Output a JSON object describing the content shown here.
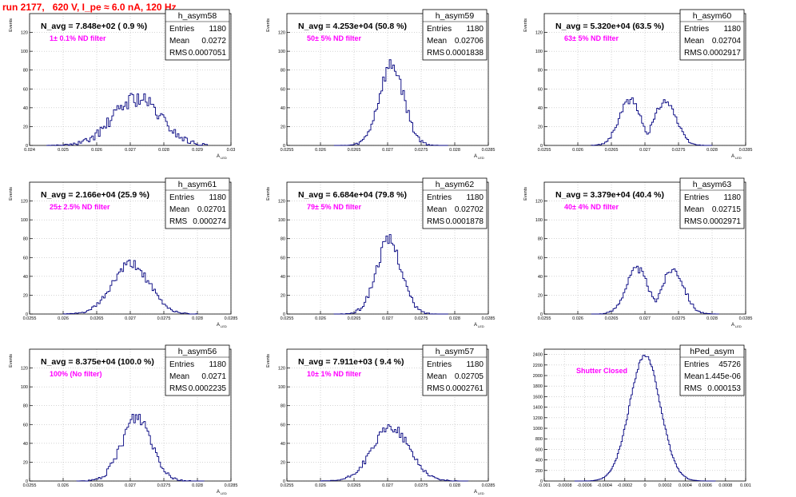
{
  "page": {
    "title": "run 2177,   620 V, I_pe ≈ 6.0 nA, 120 Hz"
  },
  "colors": {
    "hist_line": "#00007f",
    "label": "#ff00ff",
    "title": "#ff0000",
    "grid": "#bbbbbb"
  },
  "chart_data": [
    {
      "type": "histogram",
      "name": "h_asym58",
      "avg_text": "N_avg = 7.848e+02 ( 0.9 %)",
      "label": "1± 0.1% ND filter",
      "stats": {
        "Entries": "1180",
        "Mean": "0.0272",
        "RMS": "0.0007051"
      },
      "ylabel": "Events",
      "xlabel": "A_LED",
      "xlim": [
        0.024,
        0.03
      ],
      "xticks": [
        "0.024",
        "0.025",
        "0.026",
        "0.027",
        "0.028",
        "0.029",
        "0.03"
      ],
      "ylim": [
        0,
        140
      ],
      "yticks": [
        "0",
        "20",
        "40",
        "60",
        "80",
        "100",
        "120"
      ],
      "bins": [
        {
          "lo": 0.0245,
          "hi": 0.0293,
          "n": 96
        }
      ],
      "mean": 0.0272,
      "rms": 0.0007051,
      "peak": 50,
      "noise": 9,
      "seed": 58,
      "flat": 0
    },
    {
      "type": "histogram",
      "name": "h_asym59",
      "avg_text": "N_avg = 4.253e+04 (50.8 %)",
      "label": "50± 5% ND filter",
      "stats": {
        "Entries": "1180",
        "Mean": "0.02706",
        "RMS": "0.0001838"
      },
      "ylabel": "Events",
      "xlabel": "A_LED",
      "xlim": [
        0.0255,
        0.0285
      ],
      "xticks": [
        "0.0255",
        "0.026",
        "0.0265",
        "0.027",
        "0.0275",
        "0.028",
        "0.0285"
      ],
      "ylim": [
        0,
        140
      ],
      "yticks": [
        "0",
        "20",
        "40",
        "60",
        "80",
        "100",
        "120"
      ],
      "bins": [
        {
          "lo": 0.0262,
          "hi": 0.0279,
          "n": 68
        }
      ],
      "mean": 0.02706,
      "rms": 0.0001838,
      "peak": 85,
      "noise": 8,
      "seed": 59,
      "flat": 0
    },
    {
      "type": "histogram",
      "name": "h_asym60",
      "avg_text": "N_avg = 5.320e+04 (63.5 %)",
      "label": "63± 5% ND filter",
      "stats": {
        "Entries": "1180",
        "Mean": "0.02704",
        "RMS": "0.0002917"
      },
      "ylabel": "Events",
      "xlabel": "A_LED",
      "xlim": [
        0.0255,
        0.0285
      ],
      "xticks": [
        "0.0255",
        "0.026",
        "0.0265",
        "0.027",
        "0.0275",
        "0.028",
        "0.0285"
      ],
      "ylim": [
        0,
        140
      ],
      "yticks": [
        "0",
        "20",
        "40",
        "60",
        "80",
        "100",
        "120"
      ],
      "bins": [
        {
          "lo": 0.0262,
          "hi": 0.028,
          "n": 72
        }
      ],
      "mean": 0.02704,
      "rms": 0.0002917,
      "peak": 48,
      "noise": 4,
      "seed": 60,
      "flat": 1
    },
    {
      "type": "histogram",
      "name": "h_asym61",
      "avg_text": "N_avg = 2.166e+04 (25.9 %)",
      "label": "25± 2.5% ND filter",
      "stats": {
        "Entries": "1180",
        "Mean": "0.02701",
        "RMS": "0.000274"
      },
      "ylabel": "Events",
      "xlabel": "A_LED",
      "xlim": [
        0.0255,
        0.0285
      ],
      "xticks": [
        "0.0255",
        "0.026",
        "0.0265",
        "0.027",
        "0.0275",
        "0.028",
        "0.0285"
      ],
      "ylim": [
        0,
        140
      ],
      "yticks": [
        "0",
        "20",
        "40",
        "60",
        "80",
        "100",
        "120"
      ],
      "bins": [
        {
          "lo": 0.026,
          "hi": 0.028,
          "n": 80
        }
      ],
      "mean": 0.02701,
      "rms": 0.000274,
      "peak": 53,
      "noise": 5,
      "seed": 61,
      "flat": 0
    },
    {
      "type": "histogram",
      "name": "h_asym62",
      "avg_text": "N_avg = 6.684e+04 (79.8 %)",
      "label": "79± 5% ND filter",
      "stats": {
        "Entries": "1180",
        "Mean": "0.02702",
        "RMS": "0.0001878"
      },
      "ylabel": "Events",
      "xlabel": "A_LED",
      "xlim": [
        0.0255,
        0.0285
      ],
      "xticks": [
        "0.0255",
        "0.026",
        "0.0265",
        "0.027",
        "0.0275",
        "0.028",
        "0.0285"
      ],
      "ylim": [
        0,
        140
      ],
      "yticks": [
        "0",
        "20",
        "40",
        "60",
        "80",
        "100",
        "120"
      ],
      "bins": [
        {
          "lo": 0.0262,
          "hi": 0.0279,
          "n": 68
        }
      ],
      "mean": 0.02702,
      "rms": 0.0001878,
      "peak": 78,
      "noise": 7,
      "seed": 62,
      "flat": 0
    },
    {
      "type": "histogram",
      "name": "h_asym63",
      "avg_text": "N_avg = 3.379e+04 (40.4 %)",
      "label": "40± 4% ND filter",
      "stats": {
        "Entries": "1180",
        "Mean": "0.02715",
        "RMS": "0.0002971"
      },
      "ylabel": "Events",
      "xlabel": "A_LED",
      "xlim": [
        0.0255,
        0.0285
      ],
      "xticks": [
        "0.0255",
        "0.026",
        "0.0265",
        "0.027",
        "0.0275",
        "0.028",
        "0.0285"
      ],
      "ylim": [
        0,
        140
      ],
      "yticks": [
        "0",
        "20",
        "40",
        "60",
        "80",
        "100",
        "120"
      ],
      "bins": [
        {
          "lo": 0.0262,
          "hi": 0.0281,
          "n": 76
        }
      ],
      "mean": 0.02715,
      "rms": 0.0002971,
      "peak": 48,
      "noise": 4,
      "seed": 63,
      "flat": 1
    },
    {
      "type": "histogram",
      "name": "h_asym56",
      "avg_text": "N_avg = 8.375e+04 (100.0 %)",
      "label": "100% (No filter)",
      "stats": {
        "Entries": "1180",
        "Mean": "0.0271",
        "RMS": "0.0002235"
      },
      "ylabel": "Events",
      "xlabel": "A_LED",
      "xlim": [
        0.0255,
        0.0285
      ],
      "xticks": [
        "0.0255",
        "0.026",
        "0.0265",
        "0.027",
        "0.0275",
        "0.028",
        "0.0285"
      ],
      "ylim": [
        0,
        140
      ],
      "yticks": [
        "0",
        "20",
        "40",
        "60",
        "80",
        "100",
        "120"
      ],
      "bins": [
        {
          "lo": 0.0262,
          "hi": 0.0281,
          "n": 76
        }
      ],
      "mean": 0.0271,
      "rms": 0.0002235,
      "peak": 68,
      "noise": 8,
      "seed": 56,
      "flat": 0
    },
    {
      "type": "histogram",
      "name": "h_asym57",
      "avg_text": "N_avg = 7.911e+03 ( 9.4 %)",
      "label": "10± 1% ND filter",
      "stats": {
        "Entries": "1180",
        "Mean": "0.02705",
        "RMS": "0.0002761"
      },
      "ylabel": "Events",
      "xlabel": "A_LED",
      "xlim": [
        0.0255,
        0.0285
      ],
      "xticks": [
        "0.0255",
        "0.026",
        "0.0265",
        "0.027",
        "0.0275",
        "0.028",
        "0.0285"
      ],
      "ylim": [
        0,
        140
      ],
      "yticks": [
        "0",
        "20",
        "40",
        "60",
        "80",
        "100",
        "120"
      ],
      "bins": [
        {
          "lo": 0.026,
          "hi": 0.0282,
          "n": 88
        }
      ],
      "mean": 0.02705,
      "rms": 0.0002761,
      "peak": 57,
      "noise": 5,
      "seed": 57,
      "flat": 0
    },
    {
      "type": "histogram",
      "name": "hPed_asym",
      "avg_text": "",
      "label": "Shutter Closed",
      "stats": {
        "Entries": "45726",
        "Mean": "1.445e-06",
        "RMS": "0.000153"
      },
      "ylabel": "",
      "xlabel": "",
      "xlim": [
        -0.001,
        0.001
      ],
      "xticks": [
        "-0.001",
        "-0.0008",
        "-0.0006",
        "-0.0004",
        "-0.0002",
        "0",
        "0.0002",
        "0.0004",
        "0.0006",
        "0.0008",
        "0.001"
      ],
      "ylim": [
        0,
        2500
      ],
      "yticks": [
        "0",
        "200",
        "400",
        "600",
        "800",
        "1000",
        "1200",
        "1400",
        "1600",
        "1800",
        "2000",
        "2200",
        "2400"
      ],
      "bins": [
        {
          "lo": -0.0007,
          "hi": 0.0007,
          "n": 112
        }
      ],
      "mean": 0.0,
      "rms": 0.000153,
      "peak": 2380,
      "noise": 40,
      "seed": 99,
      "flat": 0
    }
  ]
}
